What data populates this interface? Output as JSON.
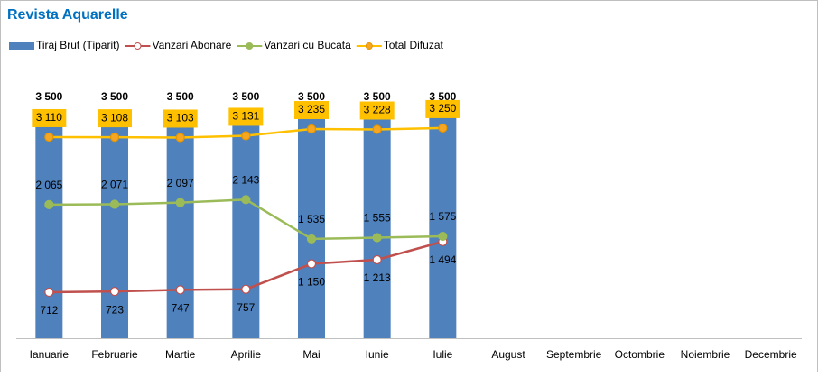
{
  "chart_data": {
    "type": "bar-line",
    "title": "Revista Aquarelle",
    "categories": [
      "Ianuarie",
      "Februarie",
      "Martie",
      "Aprilie",
      "Mai",
      "Iunie",
      "Iulie",
      "August",
      "Septembrie",
      "Octombrie",
      "Noiembrie",
      "Decembrie"
    ],
    "series": [
      {
        "name": "Tiraj Brut (Tiparit)",
        "kind": "bar",
        "color": "#4f81bd",
        "values": [
          3500,
          3500,
          3500,
          3500,
          3500,
          3500,
          3500,
          null,
          null,
          null,
          null,
          null
        ],
        "value_labels": [
          "3 500",
          "3 500",
          "3 500",
          "3 500",
          "3 500",
          "3 500",
          "3 500",
          null,
          null,
          null,
          null,
          null
        ]
      },
      {
        "name": "Vanzari Abonare",
        "kind": "line",
        "color": "#c0504d",
        "values": [
          712,
          723,
          747,
          757,
          1150,
          1213,
          1494,
          null,
          null,
          null,
          null,
          null
        ],
        "value_labels": [
          "712",
          "723",
          "747",
          "757",
          "1 150",
          "1 213",
          "1 494",
          null,
          null,
          null,
          null,
          null
        ]
      },
      {
        "name": "Vanzari cu Bucata",
        "kind": "line",
        "color": "#9bbb59",
        "values": [
          2065,
          2071,
          2097,
          2143,
          1535,
          1555,
          1575,
          null,
          null,
          null,
          null,
          null
        ],
        "value_labels": [
          "2 065",
          "2 071",
          "2 097",
          "2 143",
          "1 535",
          "1 555",
          "1 575",
          null,
          null,
          null,
          null,
          null
        ]
      },
      {
        "name": "Total Difuzat",
        "kind": "line",
        "color": "#ffc000",
        "values": [
          3110,
          3108,
          3103,
          3131,
          3235,
          3228,
          3250,
          null,
          null,
          null,
          null,
          null
        ],
        "value_labels": [
          "3 110",
          "3 108",
          "3 103",
          "3 131",
          "3 235",
          "3 228",
          "3 250",
          null,
          null,
          null,
          null,
          null
        ]
      }
    ]
  }
}
